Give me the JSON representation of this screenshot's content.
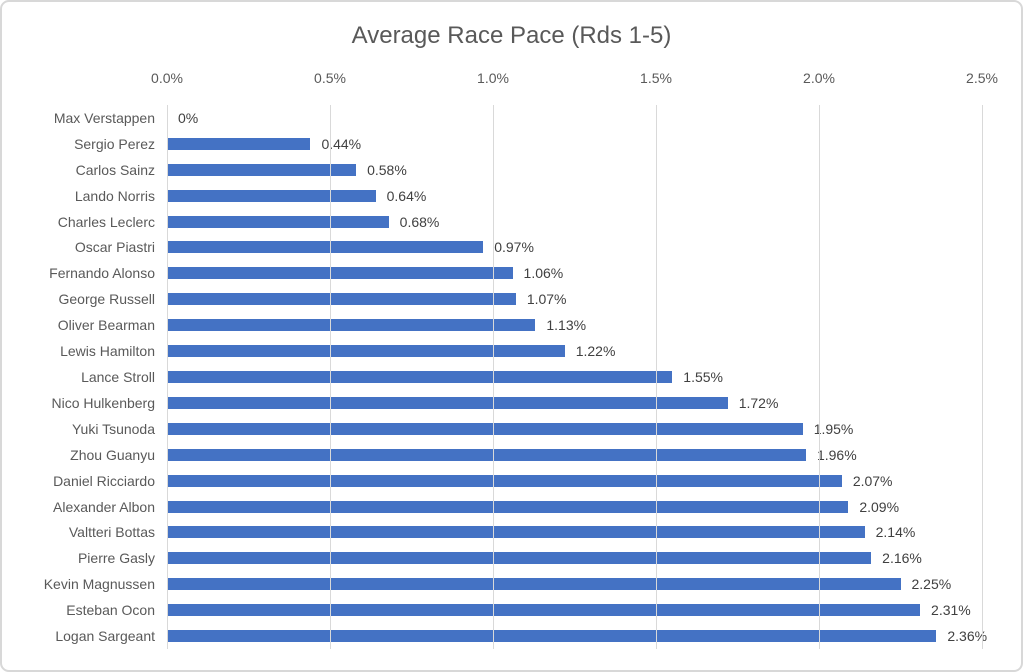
{
  "chart_data": {
    "type": "bar",
    "orientation": "horizontal",
    "title": "Average Race Pace (Rds 1-5)",
    "xlabel": "",
    "ylabel": "",
    "xlim": [
      0,
      2.5
    ],
    "x_ticks": [
      "0.0%",
      "0.5%",
      "1.0%",
      "1.5%",
      "2.0%",
      "2.5%"
    ],
    "grid": "vertical gridlines every 0.5%",
    "legend_position": "none",
    "categories": [
      "Max Verstappen",
      "Sergio Perez",
      "Carlos Sainz",
      "Lando Norris",
      "Charles Leclerc",
      "Oscar Piastri",
      "Fernando Alonso",
      "George Russell",
      "Oliver Bearman",
      "Lewis Hamilton",
      "Lance Stroll",
      "Nico Hulkenberg",
      "Yuki Tsunoda",
      "Zhou Guanyu",
      "Daniel Ricciardo",
      "Alexander Albon",
      "Valtteri Bottas",
      "Pierre Gasly",
      "Kevin Magnussen",
      "Esteban Ocon",
      "Logan Sargeant"
    ],
    "values": [
      0,
      0.44,
      0.58,
      0.64,
      0.68,
      0.97,
      1.06,
      1.07,
      1.13,
      1.22,
      1.55,
      1.72,
      1.95,
      1.96,
      2.07,
      2.09,
      2.14,
      2.16,
      2.25,
      2.31,
      2.36
    ],
    "value_labels": [
      "0%",
      "0.44%",
      "0.58%",
      "0.64%",
      "0.68%",
      "0.97%",
      "1.06%",
      "1.07%",
      "1.13%",
      "1.22%",
      "1.55%",
      "1.72%",
      "1.95%",
      "1.96%",
      "2.07%",
      "2.09%",
      "2.14%",
      "2.16%",
      "2.25%",
      "2.31%",
      "2.36%"
    ]
  },
  "colors": {
    "bar": "#4472c4",
    "title_text": "#595959",
    "axis_text": "#595959",
    "data_label_text": "#404040",
    "gridline": "#d9d9d9",
    "frame_border": "#d8d8d8",
    "background": "#ffffff"
  }
}
